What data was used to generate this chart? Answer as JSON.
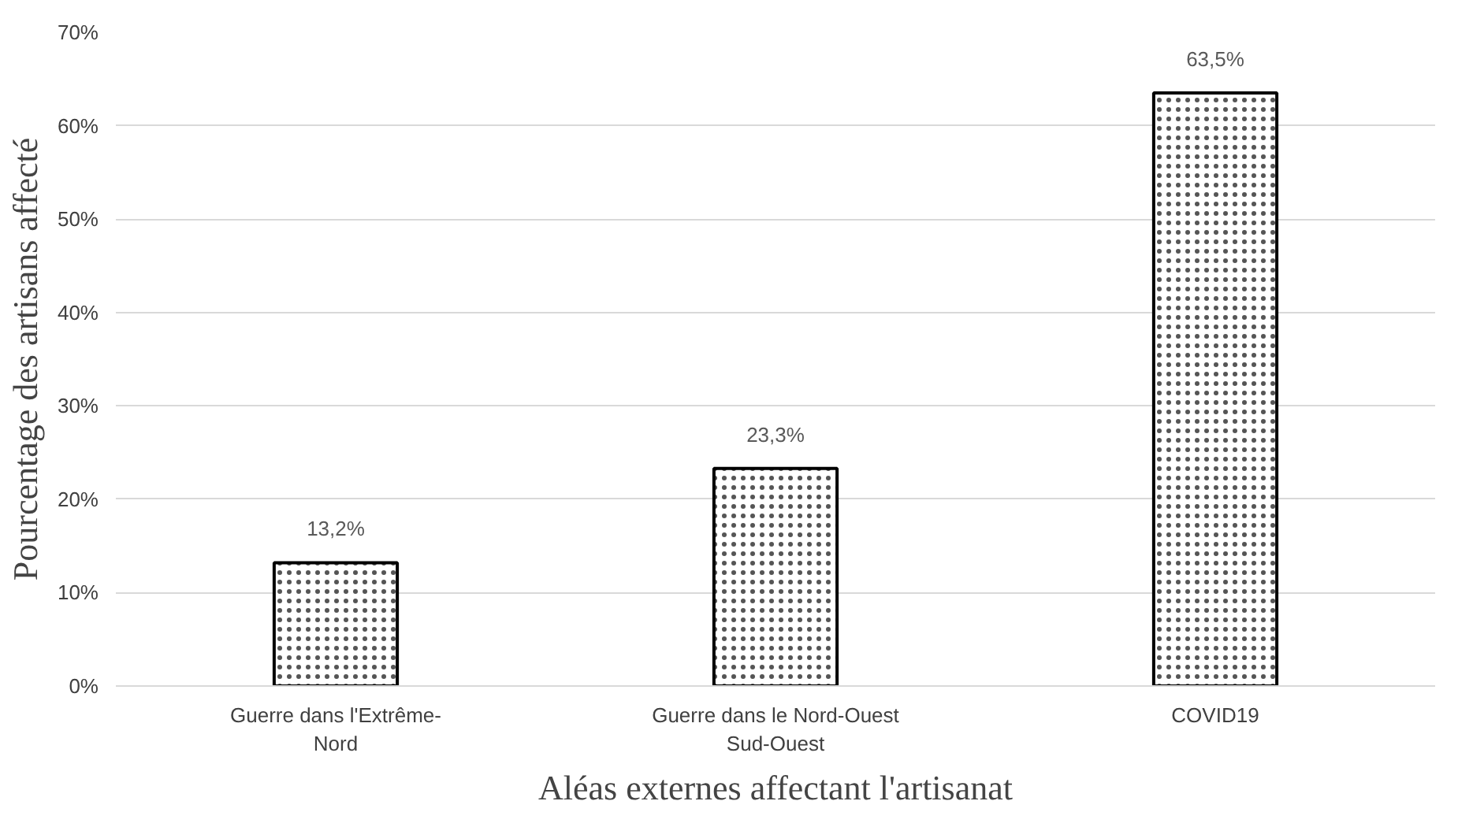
{
  "chart_data": {
    "type": "bar",
    "xlabel": "Aléas externes affectant l'artisanat",
    "ylabel": "Pourcentage des artisans affecté",
    "categories": [
      "Guerre dans l'Extrême-Nord",
      "Guerre dans le Nord-Ouest Sud-Ouest",
      "COVID19"
    ],
    "values": [
      13.2,
      23.3,
      63.5
    ],
    "value_labels": [
      "13,2%",
      "23,3%",
      "63,5%"
    ],
    "color": "#ffffff",
    "ylim": [
      0,
      70
    ],
    "yticks": [
      {
        "value": 0,
        "label": "0%"
      },
      {
        "value": 10,
        "label": "10%"
      },
      {
        "value": 20,
        "label": "20%"
      },
      {
        "value": 30,
        "label": "30%"
      },
      {
        "value": 40,
        "label": "40%"
      },
      {
        "value": 50,
        "label": "50%"
      },
      {
        "value": 60,
        "label": "60%"
      },
      {
        "value": 70,
        "label": "70%"
      }
    ],
    "grid": "y"
  }
}
